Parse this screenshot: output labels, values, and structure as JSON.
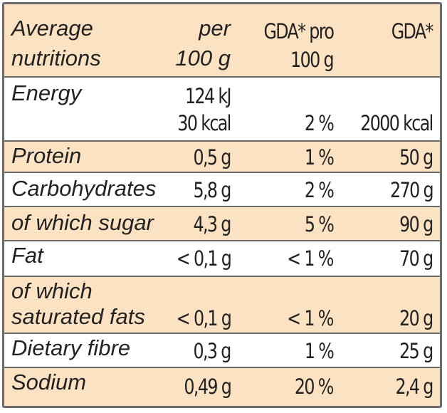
{
  "header": {
    "col1_line1": "Average",
    "col1_line2": "nutritions",
    "col2_line1": "per",
    "col2_line2": "100 g",
    "col3_line1": "GDA* pro",
    "col3_line2": "100 g",
    "col4_line1": "GDA*"
  },
  "rows": [
    {
      "label": "Energy",
      "per100_line1": "124 kJ",
      "per100_line2": "30 kcal",
      "gda_pro": "2 %",
      "gda": "2000 kcal"
    },
    {
      "label": "Protein",
      "per100": "0,5 g",
      "gda_pro": "1 %",
      "gda": "50 g"
    },
    {
      "label": "Carbohydrates",
      "per100": "5,8 g",
      "gda_pro": "2 %",
      "gda": "270 g"
    },
    {
      "label": "of which sugar",
      "per100": "4,3 g",
      "gda_pro": "5 %",
      "gda": "90 g"
    },
    {
      "label": "Fat",
      "per100": "< 0,1 g",
      "gda_pro": "< 1 %",
      "gda": "70 g"
    },
    {
      "label_line1": "of which",
      "label_line2": "saturated fats",
      "per100": "< 0,1 g",
      "gda_pro": "< 1 %",
      "gda": "20 g"
    },
    {
      "label": "Dietary fibre",
      "per100": "0,3 g",
      "gda_pro": "1 %",
      "gda": "25 g"
    },
    {
      "label": "Sodium",
      "per100": "0,49 g",
      "gda_pro": "20 %",
      "gda": "2,4 g"
    }
  ],
  "colors": {
    "shade": "#fbe2c2",
    "border": "#6b6b6b",
    "text": "#222222"
  }
}
